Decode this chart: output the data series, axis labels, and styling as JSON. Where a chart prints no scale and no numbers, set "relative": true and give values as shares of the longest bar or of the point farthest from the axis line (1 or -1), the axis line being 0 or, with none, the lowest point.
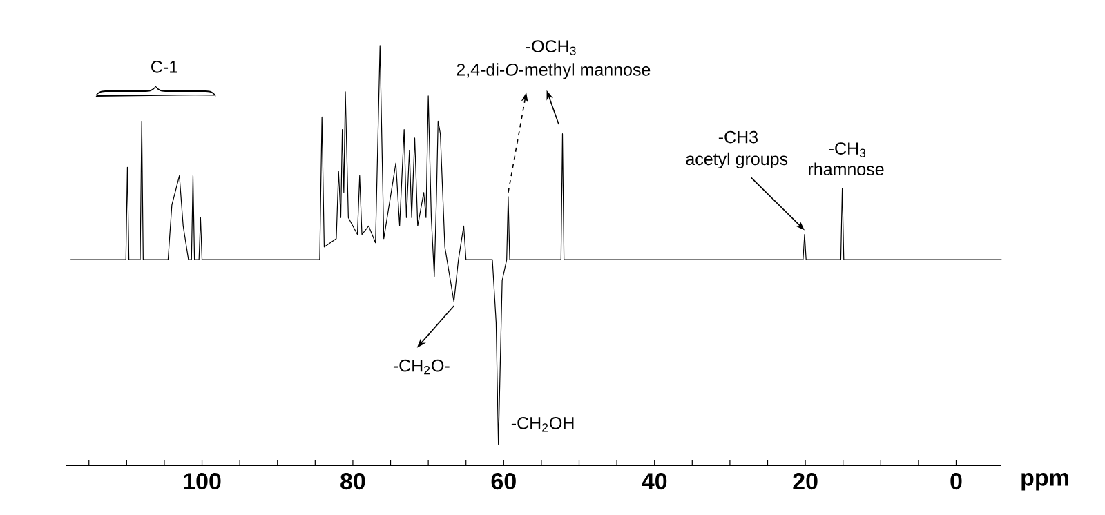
{
  "chart_data": {
    "type": "line",
    "relative": true,
    "xlabel": "ppm",
    "xlim": [
      118,
      -6
    ],
    "xticks": [
      {
        "value": 115,
        "label": null
      },
      {
        "value": 110,
        "label": null
      },
      {
        "value": 105,
        "label": null
      },
      100,
      {
        "value": 95,
        "label": null
      },
      {
        "value": 90,
        "label": null
      },
      {
        "value": 85,
        "label": null
      },
      80,
      {
        "value": 75,
        "label": null
      },
      {
        "value": 70,
        "label": null
      },
      {
        "value": 65,
        "label": null
      },
      60,
      {
        "value": 55,
        "label": null
      },
      {
        "value": 50,
        "label": null
      },
      {
        "value": 45,
        "label": null
      },
      40,
      {
        "value": 35,
        "label": null
      },
      {
        "value": 30,
        "label": null
      },
      {
        "value": 25,
        "label": null
      },
      20,
      {
        "value": 15,
        "label": null
      },
      {
        "value": 10,
        "label": null
      },
      {
        "value": 5,
        "label": null
      },
      0
    ],
    "series": [
      {
        "color": "#000000",
        "x": [
          117.4,
          110.1,
          109.9,
          109.7,
          108.2,
          108.0,
          107.8,
          104.5,
          104.0,
          103.0,
          102.5,
          101.8,
          101.4,
          101.2,
          101.0,
          100.4,
          100.2,
          100.0,
          84.4,
          84.1,
          83.8,
          82.2,
          81.9,
          81.6,
          81.4,
          81.2,
          81.0,
          80.6,
          79.4,
          79.1,
          78.8,
          77.9,
          77.0,
          76.4,
          75.9,
          74.3,
          73.8,
          73.2,
          72.9,
          72.5,
          72.2,
          71.8,
          71.4,
          70.6,
          70.3,
          70.0,
          69.6,
          69.2,
          68.9,
          68.7,
          68.4,
          67.8,
          66.6,
          66.0,
          65.3,
          65.0,
          61.5,
          61.0,
          60.7,
          60.2,
          59.6,
          59.4,
          59.2,
          52.4,
          52.2,
          52.0,
          20.3,
          20.1,
          19.9,
          15.3,
          15.1,
          14.9,
          -6
        ],
        "values": [
          0.49,
          0.49,
          0.71,
          0.49,
          0.49,
          0.82,
          0.49,
          0.49,
          0.62,
          0.69,
          0.57,
          0.49,
          0.49,
          0.69,
          0.49,
          0.49,
          0.59,
          0.49,
          0.49,
          0.83,
          0.52,
          0.54,
          0.7,
          0.59,
          0.8,
          0.65,
          0.89,
          0.59,
          0.55,
          0.69,
          0.55,
          0.57,
          0.53,
          1.0,
          0.54,
          0.72,
          0.57,
          0.8,
          0.59,
          0.75,
          0.59,
          0.78,
          0.57,
          0.65,
          0.59,
          0.88,
          0.59,
          0.45,
          0.65,
          0.82,
          0.79,
          0.52,
          0.39,
          0.49,
          0.57,
          0.49,
          0.49,
          0.34,
          0.05,
          0.44,
          0.49,
          0.64,
          0.49,
          0.49,
          0.79,
          0.49,
          0.49,
          0.55,
          0.49,
          0.49,
          0.66,
          0.49,
          0.49
        ]
      }
    ],
    "annotations": [
      "C-1",
      "-OCH$_{3}$",
      {
        "text": "2,4-di-*O*-methyl mannose",
        "x": 59.4,
        "y": 0.64
      },
      "-CH3",
      {
        "text": "acetyl groups",
        "x": 20.1,
        "y": 0.55
      },
      "-CH$_{3}$",
      {
        "text": "rhamnose",
        "x": 15.1,
        "y": 0.66
      },
      {
        "text": "-CH$_{2}$O-",
        "x": 66.6,
        "y": 0.39
      },
      {
        "text": "-CH$_{2}$OH",
        "x": 60.7,
        "y": 0.05
      }
    ]
  }
}
